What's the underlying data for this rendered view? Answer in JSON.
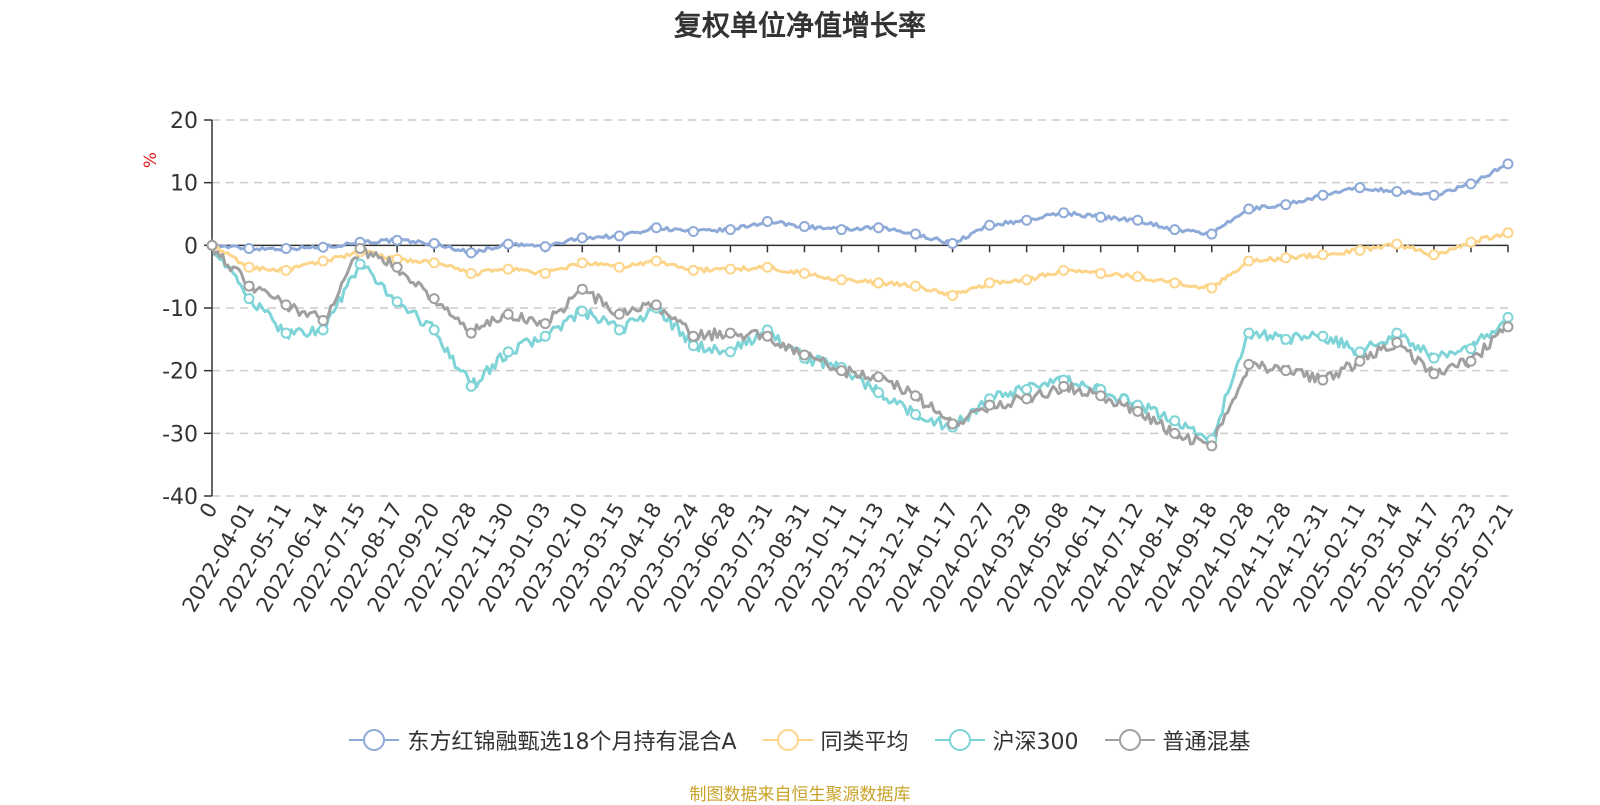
{
  "page": {
    "title": "复权单位净值增长率",
    "source_note": "制图数据来自恒生聚源数据库"
  },
  "chart_data": {
    "type": "line",
    "title": "复权单位净值增长率",
    "ylabel": "%",
    "ylim": [
      -40,
      20
    ],
    "yticks": [
      20,
      10,
      0,
      -10,
      -20,
      -30,
      -40
    ],
    "grid": true,
    "legend_position": "bottom",
    "categories": [
      "0",
      "2022-04-01",
      "2022-05-11",
      "2022-06-14",
      "2022-07-15",
      "2022-08-17",
      "2022-09-20",
      "2022-10-28",
      "2022-11-30",
      "2023-01-03",
      "2023-02-10",
      "2023-03-15",
      "2023-04-18",
      "2023-05-24",
      "2023-06-28",
      "2023-07-31",
      "2023-08-31",
      "2023-10-11",
      "2023-11-13",
      "2023-12-14",
      "2024-01-17",
      "2024-02-27",
      "2024-03-29",
      "2024-05-08",
      "2024-06-11",
      "2024-07-12",
      "2024-08-14",
      "2024-09-18",
      "2024-10-28",
      "2024-11-28",
      "2024-12-31",
      "2025-02-11",
      "2025-03-14",
      "2025-04-17",
      "2025-05-23",
      "2025-07-21"
    ],
    "series": [
      {
        "name": "东方红锦融甄选18个月持有混合A",
        "color": "#8eaad8",
        "values": [
          0,
          -0.5,
          -0.5,
          -0.3,
          0.5,
          0.8,
          0.3,
          -1.2,
          0.2,
          -0.2,
          1.2,
          1.5,
          2.8,
          2.2,
          2.5,
          3.8,
          3.0,
          2.5,
          2.8,
          1.8,
          0.3,
          3.2,
          4.0,
          5.2,
          4.5,
          4.0,
          2.5,
          1.8,
          5.8,
          6.5,
          8.0,
          9.2,
          8.6,
          8.0,
          9.8,
          13.0
        ]
      },
      {
        "name": "同类平均",
        "color": "#fdd58a",
        "values": [
          0,
          -3.5,
          -4.0,
          -2.5,
          -1.0,
          -2.2,
          -2.8,
          -4.5,
          -3.8,
          -4.5,
          -2.8,
          -3.5,
          -2.5,
          -4.0,
          -3.8,
          -3.5,
          -4.5,
          -5.5,
          -6.0,
          -6.5,
          -8.0,
          -6.0,
          -5.5,
          -4.0,
          -4.5,
          -5.0,
          -6.0,
          -6.8,
          -2.5,
          -2.0,
          -1.5,
          -0.8,
          0.2,
          -1.5,
          0.5,
          2.0
        ]
      },
      {
        "name": "沪深300",
        "color": "#7fd4d7",
        "values": [
          0,
          -8.5,
          -14.0,
          -13.5,
          -3.0,
          -9.0,
          -13.5,
          -22.5,
          -17.0,
          -14.5,
          -10.5,
          -13.5,
          -10.0,
          -16.0,
          -17.0,
          -13.5,
          -18.0,
          -19.5,
          -23.5,
          -27.0,
          -29.0,
          -24.5,
          -23.0,
          -21.5,
          -23.0,
          -25.5,
          -28.0,
          -31.0,
          -14.0,
          -15.0,
          -14.5,
          -17.0,
          -14.0,
          -18.0,
          -16.5,
          -11.5
        ]
      },
      {
        "name": "普通混基",
        "color": "#a0a0a0",
        "values": [
          0,
          -6.5,
          -9.5,
          -12.0,
          -0.5,
          -3.5,
          -8.5,
          -14.0,
          -11.0,
          -12.5,
          -7.0,
          -11.0,
          -9.5,
          -14.5,
          -14.0,
          -14.5,
          -17.5,
          -20.0,
          -21.0,
          -24.0,
          -28.5,
          -25.5,
          -24.5,
          -22.5,
          -24.0,
          -26.5,
          -30.0,
          -32.0,
          -19.0,
          -20.0,
          -21.5,
          -18.5,
          -15.5,
          -20.5,
          -18.5,
          -13.0
        ]
      }
    ]
  }
}
